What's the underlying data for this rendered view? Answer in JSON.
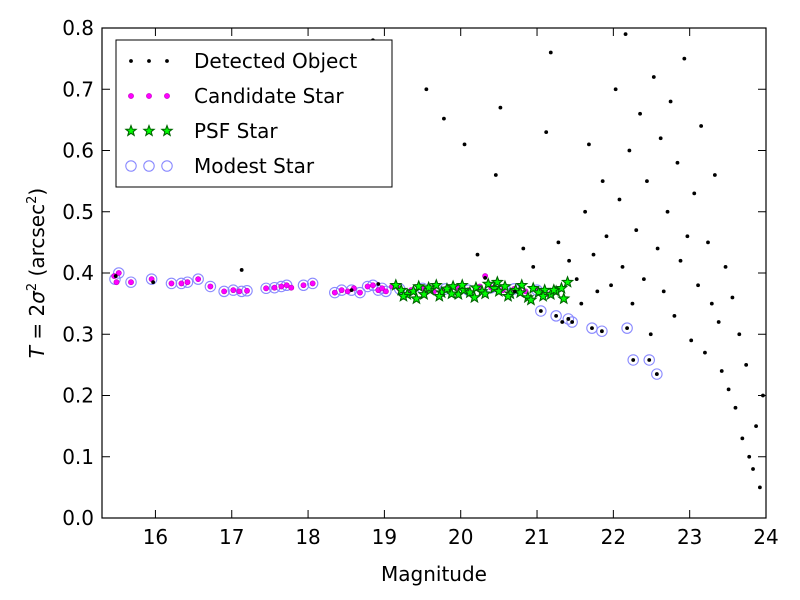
{
  "chart_data": {
    "type": "scatter",
    "xlabel": "Magnitude",
    "ylabel": "T = 2σ² (arcsec²)",
    "ylabel_parts": {
      "lhs": "T",
      "eq": " = 2",
      "sigma": "σ",
      "sigma_exp": "2",
      "unit_open": " (arcsec",
      "unit_exp": "2",
      "unit_close": ")"
    },
    "xlim": [
      15.3,
      24
    ],
    "ylim": [
      0.0,
      0.8
    ],
    "xticks": [
      16,
      17,
      18,
      19,
      20,
      21,
      22,
      23,
      24
    ],
    "yticks": [
      0.0,
      0.1,
      0.2,
      0.3,
      0.4,
      0.5,
      0.6,
      0.7,
      0.8
    ],
    "xtick_labels": [
      "16",
      "17",
      "18",
      "19",
      "20",
      "21",
      "22",
      "23",
      "24"
    ],
    "ytick_labels": [
      "0.0",
      "0.1",
      "0.2",
      "0.3",
      "0.4",
      "0.5",
      "0.6",
      "0.7",
      "0.8"
    ],
    "grid": false,
    "legend_position": "top-left",
    "colors": {
      "detected": "#000000",
      "candidate": "#ff00ff",
      "psf_fill": "#00ff00",
      "psf_edge": "#006400",
      "modest": "#8a8aff"
    },
    "series": [
      {
        "name": "Detected Object",
        "marker": "dot",
        "x": [
          15.48,
          15.97,
          17.13,
          18.57,
          18.92,
          20.32,
          20.71,
          21.05,
          21.25,
          21.41,
          21.46,
          21.72,
          21.85,
          22.18,
          22.26,
          22.47,
          22.57,
          18.85,
          19.02,
          19.55,
          19.78,
          20.05,
          20.22,
          20.46,
          20.52,
          20.82,
          20.95,
          21.12,
          21.18,
          21.28,
          21.33,
          21.42,
          21.52,
          21.58,
          21.63,
          21.68,
          21.74,
          21.79,
          21.86,
          21.91,
          21.97,
          22.03,
          22.08,
          22.12,
          22.16,
          22.21,
          22.25,
          22.3,
          22.35,
          22.4,
          22.44,
          22.49,
          22.53,
          22.58,
          22.62,
          22.66,
          22.71,
          22.75,
          22.8,
          22.84,
          22.88,
          22.93,
          22.97,
          23.02,
          23.06,
          23.11,
          23.15,
          23.2,
          23.24,
          23.29,
          23.33,
          23.38,
          23.42,
          23.47,
          23.51,
          23.56,
          23.6,
          23.65,
          23.69,
          23.74,
          23.78,
          23.83,
          23.87,
          23.92,
          23.96
        ],
        "y": [
          0.395,
          0.385,
          0.405,
          0.372,
          0.382,
          0.392,
          0.37,
          0.338,
          0.33,
          0.325,
          0.32,
          0.31,
          0.305,
          0.31,
          0.258,
          0.258,
          0.235,
          0.78,
          0.735,
          0.7,
          0.652,
          0.61,
          0.43,
          0.56,
          0.67,
          0.44,
          0.41,
          0.63,
          0.76,
          0.45,
          0.32,
          0.42,
          0.39,
          0.35,
          0.5,
          0.61,
          0.43,
          0.37,
          0.55,
          0.46,
          0.38,
          0.7,
          0.52,
          0.41,
          0.79,
          0.6,
          0.35,
          0.47,
          0.66,
          0.39,
          0.55,
          0.3,
          0.72,
          0.44,
          0.62,
          0.37,
          0.5,
          0.68,
          0.33,
          0.58,
          0.42,
          0.75,
          0.46,
          0.29,
          0.53,
          0.38,
          0.64,
          0.27,
          0.45,
          0.35,
          0.56,
          0.32,
          0.24,
          0.41,
          0.21,
          0.36,
          0.18,
          0.3,
          0.13,
          0.25,
          0.1,
          0.08,
          0.15,
          0.05,
          0.2
        ]
      },
      {
        "name": "Candidate Star",
        "marker": "circle",
        "x": [
          15.46,
          15.49,
          15.52,
          15.68,
          15.95,
          16.21,
          16.34,
          16.42,
          16.56,
          16.72,
          16.9,
          17.02,
          17.1,
          17.2,
          17.45,
          17.56,
          17.65,
          17.72,
          17.78,
          17.94,
          18.06,
          18.35,
          18.44,
          18.52,
          18.6,
          18.68,
          18.78,
          18.85,
          18.92,
          18.97,
          19.02,
          19.1,
          19.2,
          19.35,
          19.5,
          19.65,
          19.8,
          19.95,
          20.1,
          20.25,
          20.32,
          20.4,
          20.55,
          20.7,
          20.85,
          21.0,
          21.15
        ],
        "y": [
          0.395,
          0.385,
          0.4,
          0.385,
          0.39,
          0.383,
          0.383,
          0.385,
          0.39,
          0.378,
          0.37,
          0.372,
          0.37,
          0.371,
          0.375,
          0.376,
          0.378,
          0.38,
          0.376,
          0.38,
          0.383,
          0.368,
          0.372,
          0.37,
          0.375,
          0.368,
          0.378,
          0.38,
          0.372,
          0.375,
          0.37,
          0.378,
          0.374,
          0.372,
          0.375,
          0.37,
          0.374,
          0.376,
          0.372,
          0.378,
          0.395,
          0.376,
          0.372,
          0.374,
          0.37,
          0.372,
          0.365
        ]
      },
      {
        "name": "PSF Star",
        "marker": "star",
        "x": [
          19.15,
          19.22,
          19.3,
          19.38,
          19.45,
          19.52,
          19.6,
          19.68,
          19.75,
          19.82,
          19.9,
          19.97,
          20.04,
          20.12,
          20.2,
          20.28,
          20.36,
          20.44,
          20.5,
          20.58,
          20.65,
          20.72,
          20.8,
          20.88,
          20.95,
          21.02,
          21.1,
          21.18,
          21.25,
          21.32,
          21.4,
          19.25,
          19.42,
          19.58,
          19.72,
          19.88,
          20.02,
          20.18,
          20.32,
          20.48,
          20.62,
          20.78,
          20.92,
          21.08,
          21.22,
          21.35
        ],
        "y": [
          0.38,
          0.372,
          0.365,
          0.37,
          0.378,
          0.365,
          0.372,
          0.38,
          0.368,
          0.374,
          0.378,
          0.365,
          0.372,
          0.368,
          0.376,
          0.37,
          0.382,
          0.375,
          0.37,
          0.378,
          0.366,
          0.372,
          0.38,
          0.36,
          0.375,
          0.368,
          0.372,
          0.365,
          0.37,
          0.375,
          0.385,
          0.362,
          0.358,
          0.376,
          0.362,
          0.366,
          0.38,
          0.36,
          0.366,
          0.385,
          0.362,
          0.368,
          0.356,
          0.362,
          0.372,
          0.358
        ]
      },
      {
        "name": "Modest Star",
        "marker": "ring",
        "x": [
          15.47,
          15.52,
          15.68,
          15.95,
          16.21,
          16.34,
          16.42,
          16.56,
          16.72,
          16.9,
          17.02,
          17.13,
          17.2,
          17.45,
          17.56,
          17.65,
          17.72,
          17.94,
          18.06,
          18.35,
          18.44,
          18.57,
          18.68,
          18.78,
          18.85,
          18.92,
          18.97,
          19.02,
          19.2,
          19.5,
          19.8,
          20.1,
          20.4,
          20.7,
          21.0,
          21.05,
          21.25,
          21.41,
          21.46,
          21.72,
          21.85,
          22.18,
          22.26,
          22.47,
          22.57
        ],
        "y": [
          0.39,
          0.4,
          0.385,
          0.39,
          0.383,
          0.383,
          0.385,
          0.39,
          0.378,
          0.37,
          0.372,
          0.37,
          0.371,
          0.375,
          0.376,
          0.378,
          0.38,
          0.38,
          0.383,
          0.368,
          0.372,
          0.372,
          0.368,
          0.378,
          0.38,
          0.372,
          0.375,
          0.37,
          0.374,
          0.375,
          0.374,
          0.372,
          0.376,
          0.374,
          0.372,
          0.338,
          0.33,
          0.325,
          0.32,
          0.31,
          0.305,
          0.31,
          0.258,
          0.258,
          0.235
        ]
      }
    ]
  }
}
